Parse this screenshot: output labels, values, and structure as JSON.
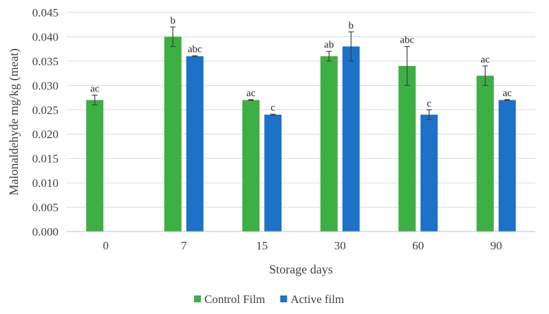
{
  "chart_data": {
    "type": "bar",
    "title": "",
    "xlabel": "Storage days",
    "ylabel": "Malonaldehyde mg/kg (meat)",
    "categories": [
      "0",
      "7",
      "15",
      "30",
      "60",
      "90"
    ],
    "ylim": [
      0,
      0.045
    ],
    "yticks": [
      "0.000",
      "0.005",
      "0.010",
      "0.015",
      "0.020",
      "0.025",
      "0.030",
      "0.035",
      "0.040",
      "0.045"
    ],
    "grid": true,
    "legend_position": "bottom",
    "series": [
      {
        "name": "Control Film",
        "color": "#3cb043",
        "values": [
          0.027,
          0.04,
          0.027,
          0.036,
          0.034,
          0.032
        ],
        "errors": [
          0.001,
          0.002,
          0.0001,
          0.001,
          0.004,
          0.002
        ],
        "labels": [
          "ac",
          "b",
          "ac",
          "ab",
          "abc",
          "ac"
        ]
      },
      {
        "name": "Active film",
        "color": "#1b72c8",
        "values": [
          null,
          0.036,
          0.024,
          0.038,
          0.024,
          0.027
        ],
        "errors": [
          null,
          0.0001,
          0.0001,
          0.003,
          0.001,
          0.0001
        ],
        "labels": [
          "",
          "abc",
          "c",
          "b",
          "c",
          "ac"
        ]
      }
    ]
  }
}
